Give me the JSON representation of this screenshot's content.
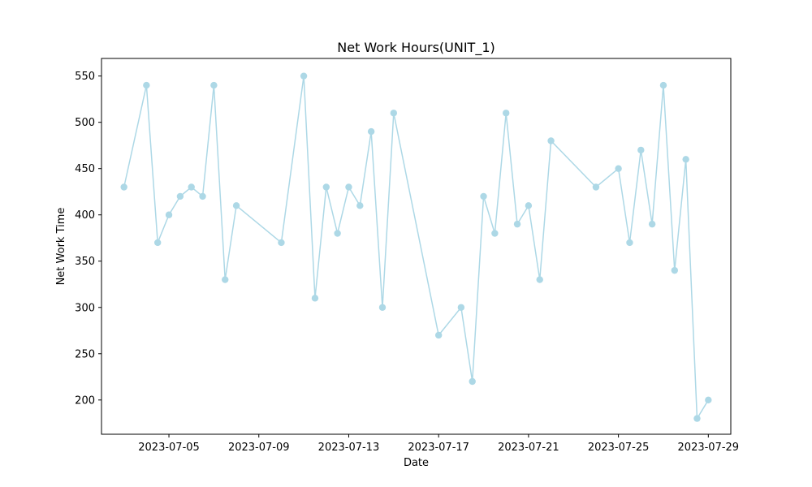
{
  "chart_data": {
    "type": "line",
    "title": "Net Work Hours(UNIT_1)",
    "xlabel": "Date",
    "ylabel": "Net Work Time",
    "color": "#add8e6",
    "marker": "circle",
    "grid": false,
    "xlim": [
      "2023-07-02",
      "2023-07-30"
    ],
    "ylim": [
      163,
      569
    ],
    "xticks": [
      "2023-07-05",
      "2023-07-09",
      "2023-07-13",
      "2023-07-17",
      "2023-07-21",
      "2023-07-25",
      "2023-07-29"
    ],
    "yticks": [
      200,
      250,
      300,
      350,
      400,
      450,
      500,
      550
    ],
    "series": [
      {
        "points": [
          {
            "x": "2023-07-03",
            "y": 430
          },
          {
            "x": "2023-07-04",
            "y": 540
          },
          {
            "x": "2023-07-04",
            "y": 370
          },
          {
            "x": "2023-07-05",
            "y": 400
          },
          {
            "x": "2023-07-05",
            "y": 420
          },
          {
            "x": "2023-07-06",
            "y": 430
          },
          {
            "x": "2023-07-06",
            "y": 420
          },
          {
            "x": "2023-07-07",
            "y": 540
          },
          {
            "x": "2023-07-07",
            "y": 330
          },
          {
            "x": "2023-07-08",
            "y": 410
          },
          {
            "x": "2023-07-10",
            "y": 370
          },
          {
            "x": "2023-07-11",
            "y": 550
          },
          {
            "x": "2023-07-11",
            "y": 310
          },
          {
            "x": "2023-07-12",
            "y": 430
          },
          {
            "x": "2023-07-12",
            "y": 380
          },
          {
            "x": "2023-07-13",
            "y": 430
          },
          {
            "x": "2023-07-13",
            "y": 410
          },
          {
            "x": "2023-07-14",
            "y": 490
          },
          {
            "x": "2023-07-14",
            "y": 300
          },
          {
            "x": "2023-07-15",
            "y": 510
          },
          {
            "x": "2023-07-17",
            "y": 270
          },
          {
            "x": "2023-07-18",
            "y": 300
          },
          {
            "x": "2023-07-18",
            "y": 220
          },
          {
            "x": "2023-07-19",
            "y": 420
          },
          {
            "x": "2023-07-19",
            "y": 380
          },
          {
            "x": "2023-07-20",
            "y": 510
          },
          {
            "x": "2023-07-20",
            "y": 390
          },
          {
            "x": "2023-07-21",
            "y": 410
          },
          {
            "x": "2023-07-21",
            "y": 330
          },
          {
            "x": "2023-07-22",
            "y": 480
          },
          {
            "x": "2023-07-24",
            "y": 430
          },
          {
            "x": "2023-07-25",
            "y": 450
          },
          {
            "x": "2023-07-25",
            "y": 370
          },
          {
            "x": "2023-07-26",
            "y": 470
          },
          {
            "x": "2023-07-26",
            "y": 390
          },
          {
            "x": "2023-07-27",
            "y": 540
          },
          {
            "x": "2023-07-27",
            "y": 340
          },
          {
            "x": "2023-07-28",
            "y": 460
          },
          {
            "x": "2023-07-28",
            "y": 180
          },
          {
            "x": "2023-07-29",
            "y": 200
          }
        ]
      }
    ]
  }
}
